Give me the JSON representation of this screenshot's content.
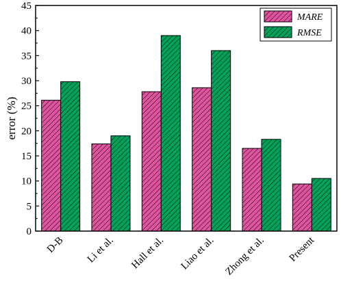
{
  "chart_data": {
    "type": "bar",
    "title": "",
    "xlabel": "",
    "ylabel": "error (%)",
    "ylim": [
      0,
      45
    ],
    "yticks": [
      0,
      5,
      10,
      15,
      20,
      25,
      30,
      35,
      40,
      45
    ],
    "categories": [
      "D-B",
      "Li et al.",
      "Hall et al.",
      "Liao et al.",
      "Zhong et al.",
      "Present"
    ],
    "series": [
      {
        "name": "MARE",
        "color": "#e0539f",
        "values": [
          26.1,
          17.4,
          27.8,
          28.6,
          16.5,
          9.4
        ]
      },
      {
        "name": "RMSE",
        "color": "#00a35a",
        "values": [
          29.8,
          19.0,
          39.0,
          36.0,
          18.3,
          10.5
        ]
      }
    ],
    "legend": "top-right",
    "grid": false,
    "hatch": "diagonal"
  }
}
